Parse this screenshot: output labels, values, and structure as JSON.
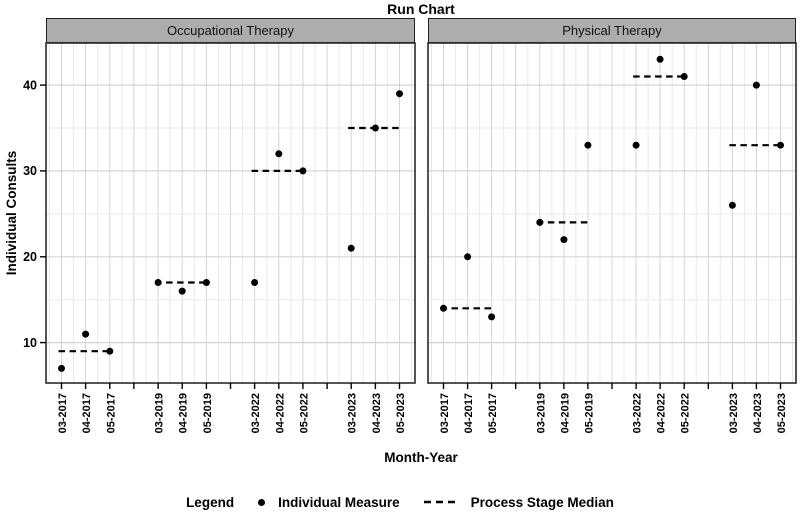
{
  "chart": {
    "title": "Run Chart",
    "xlabel": "Month-Year",
    "ylabel": "Individual Consults"
  },
  "chart_data": {
    "type": "scatter",
    "title": "Run Chart",
    "xlabel": "Month-Year",
    "ylabel": "Individual Consults",
    "ylim": [
      5.3,
      44.9
    ],
    "yticks": [
      10,
      20,
      30,
      40
    ],
    "yticks_minor": [
      15,
      25,
      35
    ],
    "grid": true,
    "categories": [
      "03-2017",
      "04-2017",
      "05-2017",
      "",
      "03-2019",
      "04-2019",
      "05-2019",
      "",
      "03-2022",
      "04-2022",
      "05-2022",
      "",
      "03-2023",
      "04-2023",
      "05-2023"
    ],
    "panels": [
      {
        "label": "Occupational Therapy",
        "values": [
          7,
          11,
          9,
          null,
          17,
          16,
          17,
          null,
          17,
          32,
          30,
          null,
          21,
          35,
          39
        ],
        "medians": [
          {
            "from": 0,
            "to": 2,
            "value": 9
          },
          {
            "from": 4,
            "to": 6,
            "value": 17
          },
          {
            "from": 8,
            "to": 10,
            "value": 30
          },
          {
            "from": 12,
            "to": 14,
            "value": 35
          }
        ]
      },
      {
        "label": "Physical Therapy",
        "values": [
          14,
          20,
          13,
          null,
          24,
          22,
          33,
          null,
          33,
          43,
          41,
          null,
          26,
          40,
          33
        ],
        "medians": [
          {
            "from": 0,
            "to": 2,
            "value": 14
          },
          {
            "from": 4,
            "to": 6,
            "value": 24
          },
          {
            "from": 8,
            "to": 10,
            "value": 41
          },
          {
            "from": 12,
            "to": 14,
            "value": 33
          }
        ]
      }
    ],
    "legend": {
      "title": "Legend",
      "position": "bottom",
      "items": [
        {
          "symbol": "point",
          "label": "Individual Measure"
        },
        {
          "symbol": "dashed-line",
          "label": "Process Stage Median"
        }
      ]
    }
  },
  "colors": {
    "point": "#000000",
    "median_line": "#000000",
    "strip_background": "#adadad",
    "strip_border": "#1f1f1f",
    "panel_border": "#2b2b2b",
    "grid_major": "#d4d4d4",
    "grid_minor": "#e9e9e9",
    "axis_tick": "#000000",
    "background": "#ffffff"
  }
}
